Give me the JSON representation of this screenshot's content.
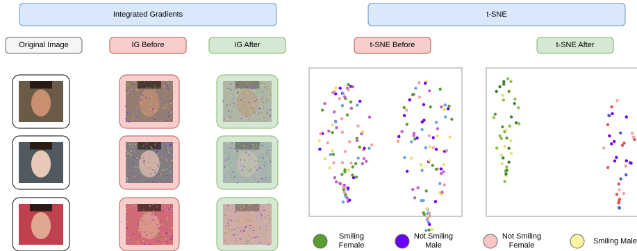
{
  "headers": {
    "left": "Integrated Gradients",
    "right": "t-SNE"
  },
  "columns": [
    "Original Image",
    "IG Before",
    "IG After",
    "t-SNE Before",
    "t-SNE After"
  ],
  "legend": [
    {
      "label": "Smiling Female",
      "color": "#5a9e2f"
    },
    {
      "label": "Not Smiling Male",
      "color": "#6a00f4"
    },
    {
      "label": "Not Smiling Female",
      "color": "#f8c4c4"
    },
    {
      "label": "Smiling Male",
      "color": "#fbf5a0"
    }
  ]
}
